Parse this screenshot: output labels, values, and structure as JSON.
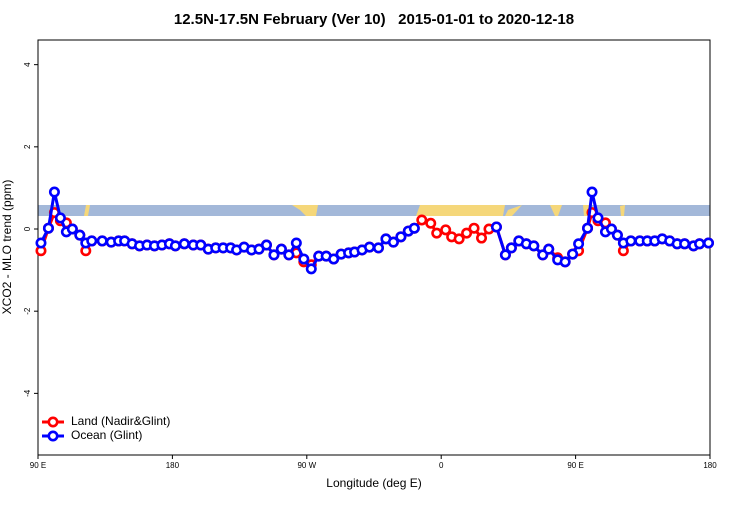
{
  "chart_data": {
    "type": "line",
    "title": "12.5N-17.5N February (Ver 10)   2015-01-01 to 2020-12-18",
    "x_label": "Longitude (deg E)",
    "y_label": "XCO2 - MLO trend (ppm)",
    "xlim": [
      90,
      540
    ],
    "ylim": [
      -5.5,
      4.6
    ],
    "xticks": [
      {
        "value": 90,
        "label": "90 E"
      },
      180,
      {
        "value": 270,
        "label": "90 W"
      },
      {
        "value": 360,
        "label": "0"
      },
      {
        "value": 450,
        "label": "90 E"
      },
      {
        "value": 540,
        "label": "180"
      }
    ],
    "yticks": [
      -4,
      -2,
      0,
      2,
      4
    ],
    "legend": "bottom-left",
    "x": [
      92,
      97,
      101,
      105,
      109,
      113,
      118,
      122,
      126,
      133,
      139,
      144,
      148,
      153,
      158,
      163,
      168,
      173,
      178,
      182,
      188,
      194,
      199,
      204,
      209,
      214,
      219,
      223,
      228,
      233,
      238,
      243,
      248,
      253,
      258,
      263,
      268,
      273,
      278,
      283,
      288,
      293,
      298,
      302,
      307,
      312,
      318,
      323,
      328,
      333,
      338,
      342,
      347,
      353,
      357,
      363,
      367,
      372,
      377,
      382,
      387,
      392,
      397,
      403,
      407,
      412,
      417,
      422,
      428,
      432,
      438,
      443,
      448,
      452,
      458,
      461,
      465,
      470,
      474,
      478,
      482,
      487,
      493,
      498,
      503,
      508,
      513,
      518,
      523,
      529,
      533,
      539
    ],
    "series": [
      {
        "name": "Land (Nadir&Glint)",
        "color": "#ff0000",
        "values": [
          -0.53,
          0.02,
          0.4,
          0.2,
          0.15,
          0,
          -0.15,
          -0.53,
          -0.29,
          -0.29,
          -0.32,
          -0.29,
          -0.29,
          -0.36,
          -0.41,
          -0.39,
          -0.41,
          -0.39,
          -0.36,
          -0.41,
          -0.36,
          -0.39,
          -0.39,
          -0.49,
          -0.46,
          -0.46,
          -0.46,
          -0.51,
          -0.44,
          -0.51,
          -0.49,
          -0.39,
          -0.63,
          -0.49,
          -0.63,
          -0.58,
          -0.8,
          -0.87,
          -0.66,
          -0.66,
          -0.73,
          -0.61,
          -0.58,
          -0.56,
          -0.51,
          -0.44,
          -0.46,
          -0.24,
          -0.32,
          -0.19,
          -0.05,
          0.02,
          0.22,
          0.14,
          -0.1,
          -0.02,
          -0.19,
          -0.24,
          -0.1,
          0.02,
          -0.22,
          0,
          0.05,
          -0.63,
          -0.46,
          -0.29,
          -0.36,
          -0.41,
          -0.63,
          -0.49,
          -0.7,
          -0.8,
          -0.61,
          -0.53,
          0.02,
          0.4,
          0.2,
          0.15,
          0,
          -0.15,
          -0.53,
          -0.29,
          -0.29,
          -0.29,
          -0.29,
          -0.24,
          -0.29,
          -0.36,
          -0.36,
          -0.41,
          -0.36,
          -0.34
        ]
      },
      {
        "name": "Ocean (Glint)",
        "color": "#0000ff",
        "values": [
          -0.34,
          0.02,
          0.9,
          0.27,
          -0.07,
          0,
          -0.15,
          -0.34,
          -0.29,
          -0.29,
          -0.32,
          -0.29,
          -0.29,
          -0.36,
          -0.41,
          -0.39,
          -0.41,
          -0.39,
          -0.36,
          -0.41,
          -0.36,
          -0.39,
          -0.39,
          -0.49,
          -0.46,
          -0.46,
          -0.46,
          -0.51,
          -0.44,
          -0.51,
          -0.49,
          -0.39,
          -0.63,
          -0.49,
          -0.63,
          -0.34,
          -0.73,
          -0.97,
          -0.66,
          -0.66,
          -0.73,
          -0.61,
          -0.58,
          -0.56,
          -0.51,
          -0.44,
          -0.46,
          -0.24,
          -0.32,
          -0.19,
          -0.05,
          0.02,
          null,
          null,
          null,
          null,
          null,
          null,
          null,
          null,
          null,
          null,
          0.05,
          -0.63,
          -0.46,
          -0.29,
          -0.36,
          -0.41,
          -0.63,
          -0.49,
          -0.75,
          -0.8,
          -0.61,
          -0.36,
          0.02,
          0.9,
          0.27,
          -0.07,
          0,
          -0.15,
          -0.34,
          -0.29,
          -0.29,
          -0.29,
          -0.29,
          -0.24,
          -0.29,
          -0.36,
          -0.36,
          -0.41,
          -0.36,
          -0.34
        ]
      }
    ]
  }
}
